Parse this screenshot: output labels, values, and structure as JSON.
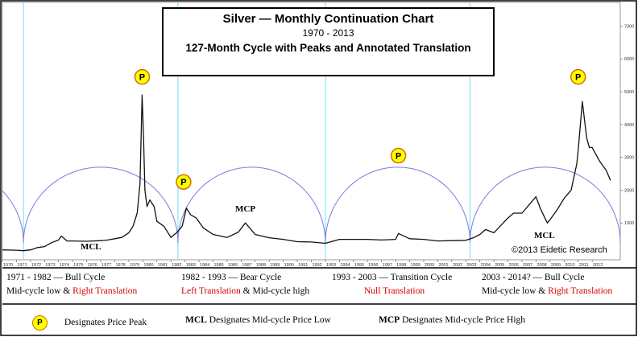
{
  "title": {
    "main": "Silver  —  Monthly Continuation Chart",
    "years": "1970 - 2013",
    "subtitle": "127-Month Cycle with Peaks and Annotated Translation"
  },
  "copyright": "©2013 Eidetic Research",
  "markers": {
    "peak_symbol": "P",
    "mcl": "MCL",
    "mcp": "MCP"
  },
  "segments": [
    {
      "line1": "1971 - 1982   — Bull Cycle",
      "line2_plain": "Mid-cycle low & ",
      "line2_red": "Right Translation",
      "red_first": false
    },
    {
      "line1": "1982 - 1993   — Bear Cycle",
      "line2_plain": " & Mid-cycle high",
      "line2_red": "Left Translation",
      "red_first": true
    },
    {
      "line1": "1993 - 2003   —  Transition  Cycle",
      "line2_plain": "",
      "line2_red": "Null  Translation",
      "red_first": false
    },
    {
      "line1": "2003 - 2014?   —  Bull Cycle",
      "line2_plain": "Mid-cycle low & ",
      "line2_red": "Right Translation",
      "red_first": false
    }
  ],
  "legend": {
    "peak": "Designates Price Peak",
    "mcl_bold": "MCL",
    "mcl_text": " Designates Mid-cycle Price Low",
    "mcp_bold": "MCP",
    "mcp_text": " Designates Mid-cycle Price High"
  },
  "chart_data": {
    "type": "line",
    "title": "Silver  —  Monthly Continuation Chart",
    "xlim": [
      1970,
      2014
    ],
    "ylim": [
      0,
      7500
    ],
    "x_ticks": [
      "1970",
      "1971",
      "1972",
      "1973",
      "1974",
      "1975",
      "1976",
      "1977",
      "1978",
      "1979",
      "1980",
      "1981",
      "1982",
      "1983",
      "1984",
      "1985",
      "1986",
      "1987",
      "1988",
      "1989",
      "1990",
      "1991",
      "1992",
      "1993",
      "1994",
      "1995",
      "1996",
      "1997",
      "1998",
      "1999",
      "2000",
      "2001",
      "2002",
      "2003",
      "2004",
      "2005",
      "2006",
      "2007",
      "2008",
      "2009",
      "2010",
      "2011",
      "2012"
    ],
    "y_ticks": [
      1000,
      2000,
      3000,
      4000,
      5000,
      6000,
      7000
    ],
    "cycle_lows": [
      1971.5,
      1982.5,
      1993.0,
      2003.3,
      2014.0
    ],
    "series": [
      {
        "x": [
          1970,
          1971,
          1971.5,
          1972,
          1972.5,
          1973,
          1973.5,
          1974,
          1974.2,
          1974.6,
          1975,
          1976,
          1977,
          1977.5,
          1978,
          1978.5,
          1979,
          1979.3,
          1979.6,
          1979.8,
          1979.95,
          1980.05,
          1980.15,
          1980.3,
          1980.5,
          1980.8,
          1981,
          1981.5,
          1982,
          1982.4,
          1982.8,
          1983.1,
          1983.4,
          1983.8,
          1984.3,
          1985,
          1986,
          1986.8,
          1987.3,
          1987.6,
          1988,
          1989,
          1990,
          1991,
          1992,
          1993,
          1994,
          1995,
          1996,
          1997,
          1998,
          1998.2,
          1999,
          2000,
          2001,
          2002,
          2003,
          2003.6,
          2004,
          2004.4,
          2005,
          2006,
          2006.4,
          2007,
          2007.6,
          2008,
          2008.3,
          2008.8,
          2009,
          2009.5,
          2010,
          2010.5,
          2010.9,
          2011,
          2011.3,
          2011.6,
          2011.8,
          2012,
          2012.5,
          2013,
          2013.3
        ],
        "values": [
          180,
          170,
          155,
          180,
          250,
          280,
          400,
          480,
          600,
          450,
          450,
          440,
          460,
          480,
          520,
          560,
          700,
          900,
          1300,
          2200,
          4900,
          3600,
          2000,
          1500,
          1700,
          1500,
          1050,
          900,
          560,
          700,
          900,
          1450,
          1250,
          1150,
          850,
          650,
          560,
          720,
          1000,
          850,
          650,
          550,
          500,
          430,
          420,
          380,
          500,
          500,
          500,
          480,
          500,
          680,
          520,
          500,
          450,
          460,
          470,
          560,
          650,
          800,
          700,
          1150,
          1300,
          1300,
          1600,
          1800,
          1450,
          1000,
          1100,
          1400,
          1750,
          2000,
          2800,
          3200,
          4700,
          3600,
          3300,
          3300,
          2900,
          2600,
          2300
        ]
      }
    ]
  }
}
